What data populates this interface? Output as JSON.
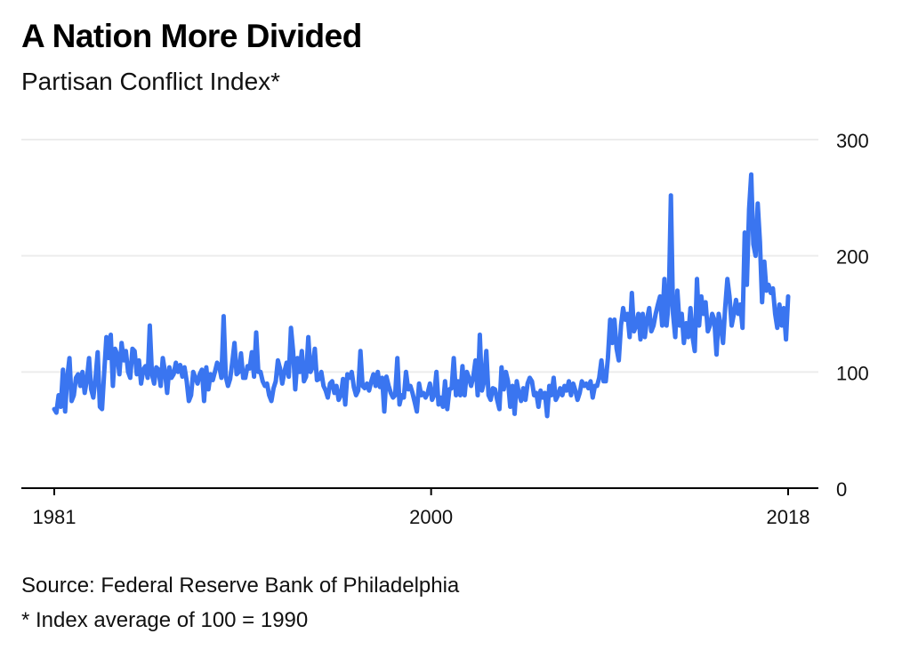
{
  "header": {
    "title": "A Nation More Divided",
    "subtitle": "Partisan Conflict Index*"
  },
  "footer": {
    "source": "Source: Federal Reserve Bank of Philadelphia",
    "note": "* Index average of 100 = 1990"
  },
  "colors": {
    "line": "#3a75f0",
    "grid": "#ececec",
    "axis": "#000000"
  },
  "chart_data": {
    "type": "line",
    "title": "A Nation More Divided",
    "subtitle": "Partisan Conflict Index*",
    "xlabel": "",
    "ylabel": "",
    "xlim": [
      1981,
      2018
    ],
    "ylim": [
      0,
      300
    ],
    "x_ticks": [
      "1981",
      "2000",
      "2018"
    ],
    "x_tick_values": [
      1981,
      2000,
      2018
    ],
    "y_ticks": [
      "0",
      "100",
      "200",
      "300"
    ],
    "y_tick_values": [
      0,
      100,
      200,
      300
    ],
    "y_axis_position": "right",
    "grid": true,
    "legend": "none",
    "series": [
      {
        "name": "Partisan Conflict Index",
        "x_start": 1981.0,
        "x_step": 0.1667,
        "values": [
          68,
          65,
          80,
          70,
          102,
          66,
          95,
          112,
          75,
          80,
          95,
          98,
          88,
          100,
          82,
          93,
          112,
          85,
          78,
          95,
          117,
          70,
          68,
          99,
          130,
          112,
          132,
          88,
          120,
          115,
          98,
          125,
          110,
          118,
          100,
          95,
          120,
          118,
          98,
          110,
          90,
          102,
          105,
          95,
          140,
          98,
          90,
          104,
          102,
          88,
          112,
          100,
          82,
          104,
          95,
          98,
          108,
          100,
          106,
          96,
          104,
          92,
          75,
          80,
          100,
          95,
          90,
          98,
          102,
          75,
          104,
          85,
          98,
          93,
          100,
          108,
          105,
          95,
          148,
          96,
          88,
          94,
          108,
          125,
          98,
          100,
          116,
          95,
          95,
          105,
          103,
          117,
          96,
          134,
          100,
          100,
          92,
          88,
          90,
          80,
          75,
          86,
          92,
          110,
          103,
          90,
          100,
          108,
          96,
          138,
          118,
          85,
          112,
          100,
          118,
          92,
          96,
          130,
          100,
          104,
          120,
          93,
          94,
          100,
          88,
          84,
          78,
          90,
          92,
          82,
          88,
          76,
          80,
          94,
          72,
          98,
          95,
          100,
          87,
          80,
          84,
          118,
          88,
          86,
          90,
          84,
          92,
          98,
          88,
          100,
          87,
          95,
          66,
          96,
          88,
          82,
          78,
          80,
          112,
          72,
          80,
          78,
          100,
          85,
          88,
          82,
          74,
          66,
          90,
          80,
          82,
          78,
          82,
          90,
          76,
          80,
          100,
          72,
          78,
          70,
          92,
          68,
          85,
          86,
          112,
          80,
          92,
          80,
          105,
          80,
          100,
          95,
          88,
          96,
          110,
          80,
          132,
          84,
          92,
          118,
          80,
          76,
          86,
          85,
          76,
          68,
          104,
          85,
          100,
          92,
          70,
          88,
          64,
          92,
          82,
          75,
          86,
          76,
          90,
          95,
          92,
          80,
          82,
          70,
          84,
          78,
          82,
          62,
          88,
          80,
          95,
          76,
          80,
          86,
          80,
          88,
          84,
          92,
          80,
          90,
          84,
          76,
          82,
          92,
          88,
          90,
          86,
          92,
          78,
          88,
          88,
          95,
          110,
          92,
          92,
          112,
          145,
          125,
          145,
          120,
          110,
          140,
          155,
          145,
          150,
          130,
          168,
          135,
          140,
          150,
          128,
          150,
          130,
          145,
          155,
          135,
          140,
          150,
          158,
          165,
          140,
          180,
          140,
          160,
          252,
          150,
          130,
          170,
          140,
          150,
          125,
          142,
          130,
          155,
          130,
          118,
          180,
          140,
          165,
          150,
          160,
          135,
          140,
          150,
          145,
          115,
          150,
          140,
          125,
          155,
          180,
          165,
          140,
          150,
          162,
          150,
          158,
          138,
          220,
          175,
          240,
          270,
          210,
          200,
          245,
          212,
          160,
          195,
          170,
          175,
          168,
          172,
          150,
          138,
          158,
          140,
          155,
          128,
          165
        ]
      }
    ]
  }
}
